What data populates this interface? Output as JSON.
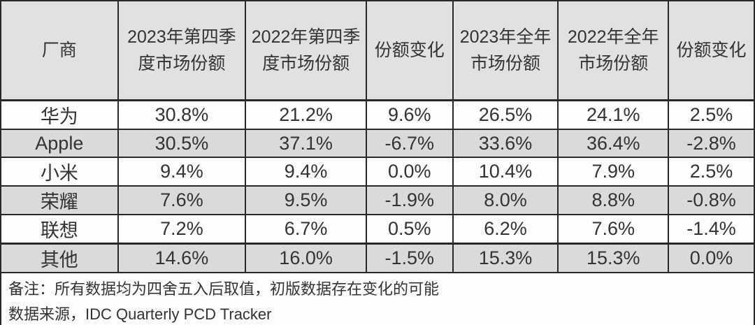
{
  "colors": {
    "border": "#282828",
    "header_bg": "#e2e1df",
    "stripe_bg": "#dbdad8",
    "row_bg": "#fdfdfc",
    "text": "#333333"
  },
  "table": {
    "columns": [
      {
        "label": "厂商"
      },
      {
        "label": "2023年第四季\n度市场份额"
      },
      {
        "label": "2022年第四季\n度市场份额"
      },
      {
        "label": "份额变化"
      },
      {
        "label": "2023年全年\n市场份额"
      },
      {
        "label": "2022年全年\n市场份额"
      },
      {
        "label": "份额变化"
      }
    ],
    "rows": [
      {
        "cells": [
          "华为",
          "30.8%",
          "21.2%",
          "9.6%",
          "26.5%",
          "24.1%",
          "2.5%"
        ],
        "striped": false,
        "thick_top": false
      },
      {
        "cells": [
          "Apple",
          "30.5%",
          "37.1%",
          "-6.7%",
          "33.6%",
          "36.4%",
          "-2.8%"
        ],
        "striped": true,
        "thick_top": false
      },
      {
        "cells": [
          "小米",
          "9.4%",
          "9.4%",
          "0.0%",
          "10.4%",
          "7.9%",
          "2.5%"
        ],
        "striped": false,
        "thick_top": false
      },
      {
        "cells": [
          "荣耀",
          "7.6%",
          "9.5%",
          "-1.9%",
          "8.0%",
          "8.8%",
          "-0.8%"
        ],
        "striped": true,
        "thick_top": false
      },
      {
        "cells": [
          "联想",
          "7.2%",
          "6.7%",
          "0.5%",
          "6.2%",
          "7.6%",
          "-1.4%"
        ],
        "striped": false,
        "thick_top": false
      },
      {
        "cells": [
          "其他",
          "14.6%",
          "16.0%",
          "-1.5%",
          "15.3%",
          "15.3%",
          "0.0%"
        ],
        "striped": true,
        "thick_top": true
      }
    ],
    "notes": [
      "备注：所有数据均为四舍五入后取值，初版数据存在变化的可能",
      "数据来源，IDC Quarterly PCD Tracker"
    ]
  },
  "chart_data": {
    "type": "table",
    "columns": [
      "厂商",
      "2023年第四季度市场份额",
      "2022年第四季度市场份额",
      "份额变化",
      "2023年全年市场份额",
      "2022年全年市场份额",
      "份额变化"
    ],
    "rows": [
      [
        "华为",
        "30.8%",
        "21.2%",
        "9.6%",
        "26.5%",
        "24.1%",
        "2.5%"
      ],
      [
        "Apple",
        "30.5%",
        "37.1%",
        "-6.7%",
        "33.6%",
        "36.4%",
        "-2.8%"
      ],
      [
        "小米",
        "9.4%",
        "9.4%",
        "0.0%",
        "10.4%",
        "7.9%",
        "2.5%"
      ],
      [
        "荣耀",
        "7.6%",
        "9.5%",
        "-1.9%",
        "8.0%",
        "8.8%",
        "-0.8%"
      ],
      [
        "联想",
        "7.2%",
        "6.7%",
        "0.5%",
        "6.2%",
        "7.6%",
        "-1.4%"
      ],
      [
        "其他",
        "14.6%",
        "16.0%",
        "-1.5%",
        "15.3%",
        "15.3%",
        "0.0%"
      ]
    ],
    "notes": [
      "备注：所有数据均为四舍五入后取值，初版数据存在变化的可能",
      "数据来源，IDC Quarterly PCD Tracker"
    ]
  }
}
